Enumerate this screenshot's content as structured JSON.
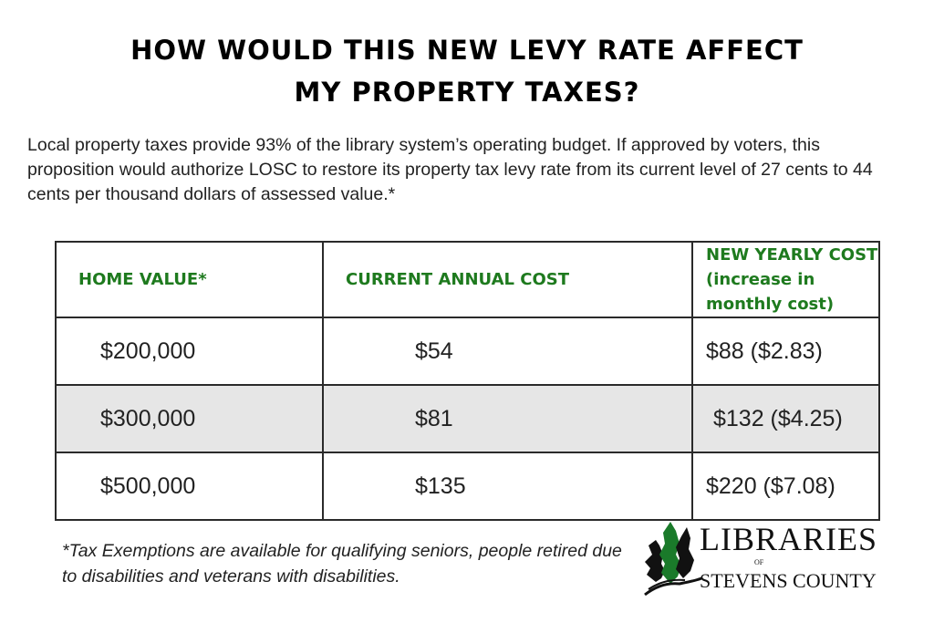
{
  "title_line1": "HOW WOULD THIS NEW LEVY RATE AFFECT",
  "title_line2": "MY PROPERTY TAXES?",
  "intro": "Local property taxes provide 93% of the library system’s operating budget. If approved by voters, this proposition would authorize LOSC to restore its property tax levy rate from its current level of 27 cents to 44 cents per thousand dollars of assessed value.*",
  "table": {
    "headers": [
      "HOME VALUE*",
      "CURRENT ANNUAL COST",
      "NEW YEARLY COST (increase in monthly cost)"
    ],
    "rows": [
      [
        "$200,000",
        "$54",
        "$88 ($2.83)"
      ],
      [
        "$300,000",
        "$81",
        "$132 ($4.25)"
      ],
      [
        "$500,000",
        "$135",
        "$220 ($7.08)"
      ]
    ]
  },
  "footnote": "*Tax Exemptions are available for qualifying seniors, people retired due to disabilities and veterans with disabilities.",
  "logo": {
    "line1": "LIBRARIES",
    "of": "OF",
    "line2": "STEVENS COUNTY"
  },
  "colors": {
    "header_green": "#1e7a1e",
    "shaded_row": "#e6e6e6"
  }
}
